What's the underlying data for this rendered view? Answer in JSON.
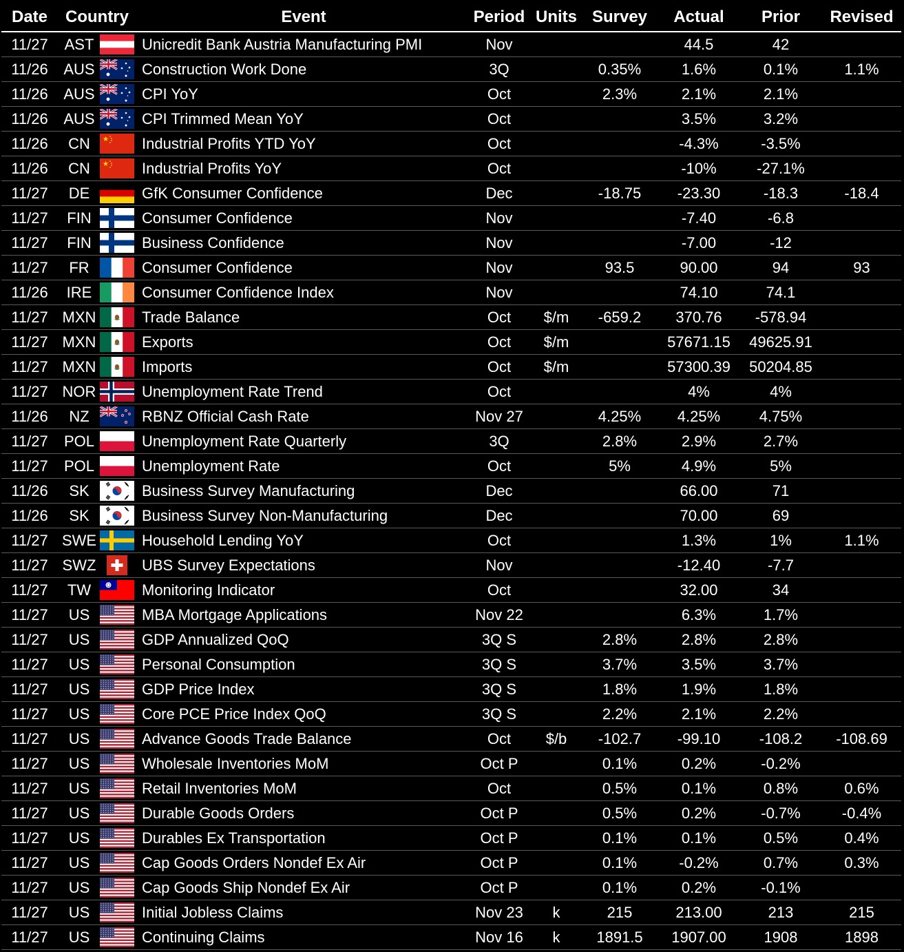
{
  "headers": {
    "date": "Date",
    "country": "Country",
    "event": "Event",
    "period": "Period",
    "units": "Units",
    "survey": "Survey",
    "actual": "Actual",
    "prior": "Prior",
    "revised": "Revised"
  },
  "rows": [
    {
      "date": "11/27",
      "country": "AST",
      "flag": "austria-flag-icon",
      "event": "Unicredit Bank Austria Manufacturing PMI",
      "period": "Nov",
      "units": "",
      "survey": "",
      "actual": "44.5",
      "prior": "42",
      "revised": ""
    },
    {
      "date": "11/26",
      "country": "AUS",
      "flag": "australia-flag-icon",
      "event": "Construction Work Done",
      "period": "3Q",
      "units": "",
      "survey": "0.35%",
      "actual": "1.6%",
      "prior": "0.1%",
      "revised": "1.1%"
    },
    {
      "date": "11/26",
      "country": "AUS",
      "flag": "australia-flag-icon",
      "event": "CPI YoY",
      "period": "Oct",
      "units": "",
      "survey": "2.3%",
      "actual": "2.1%",
      "prior": "2.1%",
      "revised": ""
    },
    {
      "date": "11/26",
      "country": "AUS",
      "flag": "australia-flag-icon",
      "event": "CPI Trimmed Mean YoY",
      "period": "Oct",
      "units": "",
      "survey": "",
      "actual": "3.5%",
      "prior": "3.2%",
      "revised": ""
    },
    {
      "date": "11/26",
      "country": "CN",
      "flag": "china-flag-icon",
      "event": "Industrial Profits YTD YoY",
      "period": "Oct",
      "units": "",
      "survey": "",
      "actual": "-4.3%",
      "prior": "-3.5%",
      "revised": ""
    },
    {
      "date": "11/26",
      "country": "CN",
      "flag": "china-flag-icon",
      "event": "Industrial Profits YoY",
      "period": "Oct",
      "units": "",
      "survey": "",
      "actual": "-10%",
      "prior": "-27.1%",
      "revised": ""
    },
    {
      "date": "11/27",
      "country": "DE",
      "flag": "germany-flag-icon",
      "event": "GfK Consumer Confidence",
      "period": "Dec",
      "units": "",
      "survey": "-18.75",
      "actual": "-23.30",
      "prior": "-18.3",
      "revised": "-18.4"
    },
    {
      "date": "11/27",
      "country": "FIN",
      "flag": "finland-flag-icon",
      "event": "Consumer Confidence",
      "period": "Nov",
      "units": "",
      "survey": "",
      "actual": "-7.40",
      "prior": "-6.8",
      "revised": ""
    },
    {
      "date": "11/27",
      "country": "FIN",
      "flag": "finland-flag-icon",
      "event": "Business Confidence",
      "period": "Nov",
      "units": "",
      "survey": "",
      "actual": "-7.00",
      "prior": "-12",
      "revised": ""
    },
    {
      "date": "11/27",
      "country": "FR",
      "flag": "france-flag-icon",
      "event": "Consumer Confidence",
      "period": "Nov",
      "units": "",
      "survey": "93.5",
      "actual": "90.00",
      "prior": "94",
      "revised": "93"
    },
    {
      "date": "11/26",
      "country": "IRE",
      "flag": "ireland-flag-icon",
      "event": "Consumer Confidence Index",
      "period": "Nov",
      "units": "",
      "survey": "",
      "actual": "74.10",
      "prior": "74.1",
      "revised": ""
    },
    {
      "date": "11/27",
      "country": "MXN",
      "flag": "mexico-flag-icon",
      "event": "Trade Balance",
      "period": "Oct",
      "units": "$/m",
      "survey": "-659.2",
      "actual": "370.76",
      "prior": "-578.94",
      "revised": ""
    },
    {
      "date": "11/27",
      "country": "MXN",
      "flag": "mexico-flag-icon",
      "event": "Exports",
      "period": "Oct",
      "units": "$/m",
      "survey": "",
      "actual": "57671.15",
      "prior": "49625.91",
      "revised": ""
    },
    {
      "date": "11/27",
      "country": "MXN",
      "flag": "mexico-flag-icon",
      "event": "Imports",
      "period": "Oct",
      "units": "$/m",
      "survey": "",
      "actual": "57300.39",
      "prior": "50204.85",
      "revised": ""
    },
    {
      "date": "11/27",
      "country": "NOR",
      "flag": "norway-flag-icon",
      "event": "Unemployment Rate Trend",
      "period": "Oct",
      "units": "",
      "survey": "",
      "actual": "4%",
      "prior": "4%",
      "revised": ""
    },
    {
      "date": "11/26",
      "country": "NZ",
      "flag": "new-zealand-flag-icon",
      "event": "RBNZ Official Cash Rate",
      "period": "Nov 27",
      "units": "",
      "survey": "4.25%",
      "actual": "4.25%",
      "prior": "4.75%",
      "revised": ""
    },
    {
      "date": "11/27",
      "country": "POL",
      "flag": "poland-flag-icon",
      "event": "Unemployment Rate Quarterly",
      "period": "3Q",
      "units": "",
      "survey": "2.8%",
      "actual": "2.9%",
      "prior": "2.7%",
      "revised": ""
    },
    {
      "date": "11/27",
      "country": "POL",
      "flag": "poland-flag-icon",
      "event": "Unemployment Rate",
      "period": "Oct",
      "units": "",
      "survey": "5%",
      "actual": "4.9%",
      "prior": "5%",
      "revised": ""
    },
    {
      "date": "11/26",
      "country": "SK",
      "flag": "south-korea-flag-icon",
      "event": "Business Survey Manufacturing",
      "period": "Dec",
      "units": "",
      "survey": "",
      "actual": "66.00",
      "prior": "71",
      "revised": ""
    },
    {
      "date": "11/26",
      "country": "SK",
      "flag": "south-korea-flag-icon",
      "event": "Business Survey Non-Manufacturing",
      "period": "Dec",
      "units": "",
      "survey": "",
      "actual": "70.00",
      "prior": "69",
      "revised": ""
    },
    {
      "date": "11/27",
      "country": "SWE",
      "flag": "sweden-flag-icon",
      "event": "Household Lending YoY",
      "period": "Oct",
      "units": "",
      "survey": "",
      "actual": "1.3%",
      "prior": "1%",
      "revised": "1.1%"
    },
    {
      "date": "11/27",
      "country": "SWZ",
      "flag": "switzerland-flag-icon",
      "event": "UBS Survey Expectations",
      "period": "Nov",
      "units": "",
      "survey": "",
      "actual": "-12.40",
      "prior": "-7.7",
      "revised": ""
    },
    {
      "date": "11/27",
      "country": "TW",
      "flag": "taiwan-flag-icon",
      "event": "Monitoring Indicator",
      "period": "Oct",
      "units": "",
      "survey": "",
      "actual": "32.00",
      "prior": "34",
      "revised": ""
    },
    {
      "date": "11/27",
      "country": "US",
      "flag": "usa-flag-icon",
      "event": "MBA Mortgage Applications",
      "period": "Nov 22",
      "units": "",
      "survey": "",
      "actual": "6.3%",
      "prior": "1.7%",
      "revised": ""
    },
    {
      "date": "11/27",
      "country": "US",
      "flag": "usa-flag-icon",
      "event": "GDP Annualized QoQ",
      "period": "3Q S",
      "units": "",
      "survey": "2.8%",
      "actual": "2.8%",
      "prior": "2.8%",
      "revised": ""
    },
    {
      "date": "11/27",
      "country": "US",
      "flag": "usa-flag-icon",
      "event": "Personal Consumption",
      "period": "3Q S",
      "units": "",
      "survey": "3.7%",
      "actual": "3.5%",
      "prior": "3.7%",
      "revised": ""
    },
    {
      "date": "11/27",
      "country": "US",
      "flag": "usa-flag-icon",
      "event": "GDP Price Index",
      "period": "3Q S",
      "units": "",
      "survey": "1.8%",
      "actual": "1.9%",
      "prior": "1.8%",
      "revised": ""
    },
    {
      "date": "11/27",
      "country": "US",
      "flag": "usa-flag-icon",
      "event": "Core PCE Price Index QoQ",
      "period": "3Q S",
      "units": "",
      "survey": "2.2%",
      "actual": "2.1%",
      "prior": "2.2%",
      "revised": ""
    },
    {
      "date": "11/27",
      "country": "US",
      "flag": "usa-flag-icon",
      "event": "Advance Goods Trade Balance",
      "period": "Oct",
      "units": "$/b",
      "survey": "-102.7",
      "actual": "-99.10",
      "prior": "-108.2",
      "revised": "-108.69"
    },
    {
      "date": "11/27",
      "country": "US",
      "flag": "usa-flag-icon",
      "event": "Wholesale Inventories MoM",
      "period": "Oct P",
      "units": "",
      "survey": "0.1%",
      "actual": "0.2%",
      "prior": "-0.2%",
      "revised": ""
    },
    {
      "date": "11/27",
      "country": "US",
      "flag": "usa-flag-icon",
      "event": "Retail Inventories MoM",
      "period": "Oct",
      "units": "",
      "survey": "0.5%",
      "actual": "0.1%",
      "prior": "0.8%",
      "revised": "0.6%"
    },
    {
      "date": "11/27",
      "country": "US",
      "flag": "usa-flag-icon",
      "event": "Durable Goods Orders",
      "period": "Oct P",
      "units": "",
      "survey": "0.5%",
      "actual": "0.2%",
      "prior": "-0.7%",
      "revised": "-0.4%"
    },
    {
      "date": "11/27",
      "country": "US",
      "flag": "usa-flag-icon",
      "event": "Durables Ex Transportation",
      "period": "Oct P",
      "units": "",
      "survey": "0.1%",
      "actual": "0.1%",
      "prior": "0.5%",
      "revised": "0.4%"
    },
    {
      "date": "11/27",
      "country": "US",
      "flag": "usa-flag-icon",
      "event": "Cap Goods Orders Nondef Ex Air",
      "period": "Oct P",
      "units": "",
      "survey": "0.1%",
      "actual": "-0.2%",
      "prior": "0.7%",
      "revised": "0.3%"
    },
    {
      "date": "11/27",
      "country": "US",
      "flag": "usa-flag-icon",
      "event": "Cap Goods Ship Nondef Ex Air",
      "period": "Oct P",
      "units": "",
      "survey": "0.1%",
      "actual": "0.2%",
      "prior": "-0.1%",
      "revised": ""
    },
    {
      "date": "11/27",
      "country": "US",
      "flag": "usa-flag-icon",
      "event": "Initial Jobless Claims",
      "period": "Nov 23",
      "units": "k",
      "survey": "215",
      "actual": "213.00",
      "prior": "213",
      "revised": "215"
    },
    {
      "date": "11/27",
      "country": "US",
      "flag": "usa-flag-icon",
      "event": "Continuing Claims",
      "period": "Nov 16",
      "units": "k",
      "survey": "1891.5",
      "actual": "1907.00",
      "prior": "1908",
      "revised": "1898"
    }
  ]
}
